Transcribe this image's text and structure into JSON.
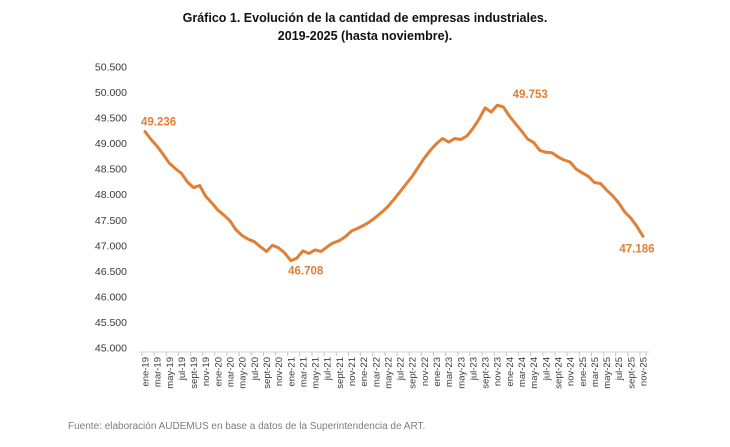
{
  "header": {
    "title_line1": "Gráfico 1. Evolución de la cantidad de empresas industriales.",
    "title_line2": "2019-2025 (hasta noviembre)."
  },
  "footer": {
    "source": "Fuente: elaboración AUDEMUS en base a datos de la Superintendencia de ART."
  },
  "chart_data": {
    "type": "line",
    "title": "Gráfico 1. Evolución de la cantidad de empresas industriales. 2019-2025 (hasta noviembre).",
    "series_name": "Cantidad de empresas industriales",
    "x_start": "ene-19",
    "x_end": "nov-25",
    "x_frequency": "monthly",
    "ylim": [
      45000,
      50500
    ],
    "y_step": 500,
    "grid": "off",
    "legend": "none",
    "line_color": "#E07F35",
    "label_color": "#E07F35",
    "axis_text_color": "#3a3a3a",
    "y_tick_labels": [
      "50.500",
      "50.000",
      "49.500",
      "49.000",
      "48.500",
      "48.000",
      "47.500",
      "47.000",
      "46.500",
      "46.000",
      "45.500",
      "45.000"
    ],
    "x_tick_labels": [
      "ene-19",
      "mar-19",
      "may-19",
      "jul-19",
      "sept-19",
      "nov-19",
      "ene-20",
      "mar-20",
      "may-20",
      "jul-20",
      "sept-20",
      "nov-20",
      "ene-21",
      "mar-21",
      "may-21",
      "jul-21",
      "sept-21",
      "nov-21",
      "ene-22",
      "mar-22",
      "may-22",
      "jul-22",
      "sept-22",
      "nov-22",
      "ene-23",
      "mar-23",
      "may-23",
      "jul-23",
      "sept-23",
      "nov-23",
      "ene-24",
      "mar-24",
      "may-24",
      "jul-24",
      "sept-24",
      "nov-24",
      "ene-25",
      "mar-25",
      "may-25",
      "jul-25",
      "sept-25",
      "nov-25"
    ],
    "values": [
      49236,
      49080,
      48950,
      48790,
      48620,
      48510,
      48420,
      48250,
      48140,
      48180,
      47970,
      47840,
      47700,
      47600,
      47490,
      47310,
      47200,
      47130,
      47080,
      46980,
      46890,
      47010,
      46960,
      46860,
      46708,
      46760,
      46900,
      46850,
      46920,
      46890,
      46980,
      47060,
      47100,
      47180,
      47290,
      47340,
      47400,
      47470,
      47560,
      47660,
      47770,
      47910,
      48060,
      48210,
      48360,
      48540,
      48720,
      48870,
      49000,
      49100,
      49030,
      49100,
      49080,
      49150,
      49300,
      49480,
      49700,
      49620,
      49753,
      49720,
      49540,
      49390,
      49250,
      49090,
      49020,
      48870,
      48830,
      48820,
      48740,
      48680,
      48640,
      48500,
      48430,
      48360,
      48240,
      48220,
      48090,
      47980,
      47840,
      47660,
      47540,
      47380,
      47186
    ],
    "annotations": [
      {
        "month": "ene-19",
        "index": 0,
        "text": "49.236",
        "placement": "above-start"
      },
      {
        "month": "ene-21",
        "index": 24,
        "text": "46.708",
        "placement": "below"
      },
      {
        "month": "nov-23",
        "index": 58,
        "text": "49.753",
        "placement": "above"
      },
      {
        "month": "nov-25",
        "index": 82,
        "text": "47.186",
        "placement": "below-end"
      }
    ]
  }
}
